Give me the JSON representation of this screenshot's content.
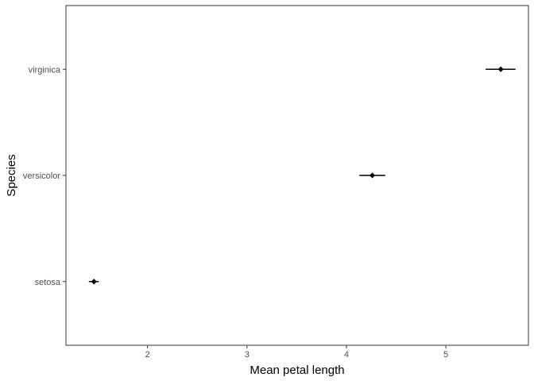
{
  "chart_data": {
    "type": "scatter",
    "title": "",
    "xlabel": "Mean petal length",
    "ylabel": "Species",
    "xlim": [
      1.18,
      5.83
    ],
    "x_ticks": [
      2,
      3,
      4,
      5
    ],
    "x_tick_labels": [
      "2",
      "3",
      "4",
      "5"
    ],
    "categories": [
      "setosa",
      "versicolor",
      "virginica"
    ],
    "grid": false,
    "points": [
      {
        "category": "setosa",
        "x": 1.462,
        "xmin": 1.41,
        "xmax": 1.51
      },
      {
        "category": "versicolor",
        "x": 4.26,
        "xmin": 4.13,
        "xmax": 4.39
      },
      {
        "category": "virginica",
        "x": 5.552,
        "xmin": 5.4,
        "xmax": 5.7
      }
    ],
    "colors": {
      "point": "#000000",
      "axis": "#333333",
      "text": "#4d4d4d",
      "frame": "#333333"
    }
  }
}
